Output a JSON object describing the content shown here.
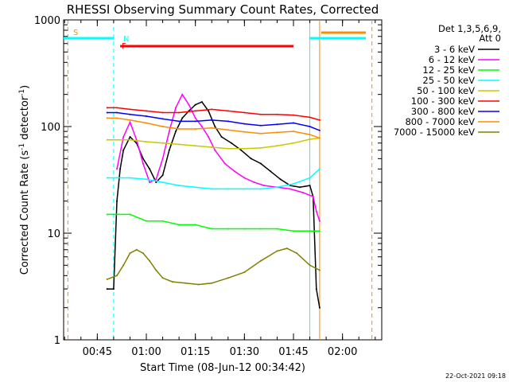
{
  "chart_data": {
    "type": "line",
    "title": "RHESSI Observing Summary Count Rates, Corrected",
    "xlabel": "Start Time (08-Jun-12 00:34:42)",
    "ylabel": "Corrected Count Rate (s⁻¹ detector⁻¹)",
    "ylabel_main": "Corrected Count Rate (s",
    "ylabel_sup1": "-1",
    "ylabel_mid": " detector",
    "ylabel_sup2": "-1",
    "ylabel_end": ")",
    "y_scale": "log",
    "ylim": [
      1,
      1000
    ],
    "xlim": [
      "00:34:42",
      "02:12:00"
    ],
    "x_ticks": [
      "00:45",
      "01:00",
      "01:15",
      "01:30",
      "01:45",
      "02:00"
    ],
    "y_ticks": [
      "1",
      "10",
      "100",
      "1000"
    ],
    "legend_title": "Det 1,3,5,6,9,",
    "legend_subtitle": "Att 0",
    "legend_position": "right",
    "footer_date": "22-Oct-2021 09:18",
    "annotations": {
      "saa": "S",
      "night": "N",
      "flare": "F"
    },
    "markers": {
      "night_end": "00:50",
      "night_start": "01:50",
      "saa_start": "00:36",
      "saa_end": "02:09",
      "attenuator_out_start": "01:53",
      "attenuator_out_end": "01:53",
      "flare_bar": [
        "00:52",
        "01:45"
      ]
    },
    "series": [
      {
        "name": "3 - 6 keV",
        "color": "#000000",
        "points": [
          [
            "00:48",
            3
          ],
          [
            "00:50",
            3
          ],
          [
            "00:51",
            20
          ],
          [
            "00:52",
            40
          ],
          [
            "00:53",
            60
          ],
          [
            "00:55",
            80
          ],
          [
            "00:57",
            70
          ],
          [
            "00:59",
            50
          ],
          [
            "01:01",
            40
          ],
          [
            "01:03",
            30
          ],
          [
            "01:05",
            35
          ],
          [
            "01:07",
            60
          ],
          [
            "01:09",
            90
          ],
          [
            "01:11",
            120
          ],
          [
            "01:13",
            140
          ],
          [
            "01:15",
            160
          ],
          [
            "01:17",
            170
          ],
          [
            "01:19",
            140
          ],
          [
            "01:21",
            100
          ],
          [
            "01:23",
            80
          ],
          [
            "01:26",
            70
          ],
          [
            "01:29",
            60
          ],
          [
            "01:32",
            50
          ],
          [
            "01:35",
            45
          ],
          [
            "01:38",
            38
          ],
          [
            "01:41",
            32
          ],
          [
            "01:44",
            28
          ],
          [
            "01:47",
            27
          ],
          [
            "01:50",
            28
          ],
          [
            "01:51",
            22
          ],
          [
            "01:52",
            3
          ],
          [
            "01:53",
            2
          ]
        ]
      },
      {
        "name": "6 - 12 keV",
        "color": "#ff00ff",
        "points": [
          [
            "00:51",
            40
          ],
          [
            "00:53",
            80
          ],
          [
            "00:55",
            110
          ],
          [
            "00:57",
            75
          ],
          [
            "00:59",
            45
          ],
          [
            "01:01",
            30
          ],
          [
            "01:03",
            32
          ],
          [
            "01:05",
            50
          ],
          [
            "01:07",
            90
          ],
          [
            "01:09",
            150
          ],
          [
            "01:11",
            200
          ],
          [
            "01:13",
            160
          ],
          [
            "01:15",
            120
          ],
          [
            "01:17",
            100
          ],
          [
            "01:19",
            80
          ],
          [
            "01:21",
            60
          ],
          [
            "01:24",
            45
          ],
          [
            "01:27",
            38
          ],
          [
            "01:30",
            33
          ],
          [
            "01:33",
            30
          ],
          [
            "01:36",
            28
          ],
          [
            "01:40",
            27
          ],
          [
            "01:44",
            26
          ],
          [
            "01:48",
            24
          ],
          [
            "01:51",
            22
          ],
          [
            "01:52",
            16
          ],
          [
            "01:53",
            13
          ]
        ]
      },
      {
        "name": "12 - 25 keV",
        "color": "#00ff00",
        "points": [
          [
            "00:48",
            15
          ],
          [
            "00:51",
            15
          ],
          [
            "00:55",
            15
          ],
          [
            "01:00",
            13
          ],
          [
            "01:05",
            13
          ],
          [
            "01:10",
            12
          ],
          [
            "01:15",
            12
          ],
          [
            "01:20",
            11
          ],
          [
            "01:25",
            11
          ],
          [
            "01:30",
            11
          ],
          [
            "01:35",
            11
          ],
          [
            "01:40",
            11
          ],
          [
            "01:45",
            10.5
          ],
          [
            "01:50",
            10.5
          ],
          [
            "01:53",
            10.5
          ]
        ]
      },
      {
        "name": "25 - 50 keV",
        "color": "#00ffff",
        "points": [
          [
            "00:48",
            33
          ],
          [
            "00:51",
            33
          ],
          [
            "00:55",
            33
          ],
          [
            "01:00",
            32
          ],
          [
            "01:05",
            30
          ],
          [
            "01:10",
            28
          ],
          [
            "01:15",
            27
          ],
          [
            "01:20",
            26
          ],
          [
            "01:25",
            26
          ],
          [
            "01:30",
            26
          ],
          [
            "01:35",
            26
          ],
          [
            "01:40",
            27
          ],
          [
            "01:45",
            29
          ],
          [
            "01:50",
            33
          ],
          [
            "01:53",
            40
          ]
        ]
      },
      {
        "name": "50 - 100 keV",
        "color": "#c8c800",
        "points": [
          [
            "00:48",
            75
          ],
          [
            "00:51",
            75
          ],
          [
            "00:55",
            75
          ],
          [
            "01:00",
            72
          ],
          [
            "01:05",
            70
          ],
          [
            "01:10",
            68
          ],
          [
            "01:15",
            66
          ],
          [
            "01:20",
            64
          ],
          [
            "01:25",
            62
          ],
          [
            "01:30",
            62
          ],
          [
            "01:35",
            63
          ],
          [
            "01:40",
            66
          ],
          [
            "01:45",
            70
          ],
          [
            "01:50",
            76
          ],
          [
            "01:53",
            78
          ]
        ]
      },
      {
        "name": "100 - 300 keV",
        "color": "#ff0000",
        "points": [
          [
            "00:48",
            150
          ],
          [
            "00:51",
            150
          ],
          [
            "00:55",
            145
          ],
          [
            "01:00",
            140
          ],
          [
            "01:05",
            135
          ],
          [
            "01:10",
            135
          ],
          [
            "01:15",
            140
          ],
          [
            "01:20",
            145
          ],
          [
            "01:25",
            140
          ],
          [
            "01:30",
            135
          ],
          [
            "01:35",
            130
          ],
          [
            "01:40",
            130
          ],
          [
            "01:45",
            128
          ],
          [
            "01:50",
            122
          ],
          [
            "01:53",
            115
          ]
        ]
      },
      {
        "name": "300 - 800 keV",
        "color": "#0000ff",
        "points": [
          [
            "00:48",
            135
          ],
          [
            "00:51",
            135
          ],
          [
            "00:55",
            130
          ],
          [
            "01:00",
            125
          ],
          [
            "01:05",
            118
          ],
          [
            "01:10",
            112
          ],
          [
            "01:15",
            112
          ],
          [
            "01:20",
            115
          ],
          [
            "01:25",
            112
          ],
          [
            "01:30",
            106
          ],
          [
            "01:35",
            102
          ],
          [
            "01:40",
            105
          ],
          [
            "01:45",
            108
          ],
          [
            "01:50",
            100
          ],
          [
            "01:53",
            92
          ]
        ]
      },
      {
        "name": "800 - 7000 keV",
        "color": "#ff8c00",
        "points": [
          [
            "00:48",
            120
          ],
          [
            "00:51",
            120
          ],
          [
            "00:55",
            115
          ],
          [
            "01:00",
            108
          ],
          [
            "01:05",
            100
          ],
          [
            "01:10",
            95
          ],
          [
            "01:15",
            95
          ],
          [
            "01:20",
            97
          ],
          [
            "01:25",
            93
          ],
          [
            "01:30",
            89
          ],
          [
            "01:35",
            86
          ],
          [
            "01:40",
            88
          ],
          [
            "01:45",
            90
          ],
          [
            "01:50",
            84
          ],
          [
            "01:53",
            78
          ]
        ]
      },
      {
        "name": "7000 - 15000 keV",
        "color": "#808000",
        "points": [
          [
            "00:48",
            3.7
          ],
          [
            "00:51",
            4
          ],
          [
            "00:53",
            5
          ],
          [
            "00:55",
            6.5
          ],
          [
            "00:57",
            7
          ],
          [
            "00:59",
            6.5
          ],
          [
            "01:01",
            5.5
          ],
          [
            "01:03",
            4.5
          ],
          [
            "01:05",
            3.8
          ],
          [
            "01:08",
            3.5
          ],
          [
            "01:12",
            3.4
          ],
          [
            "01:16",
            3.3
          ],
          [
            "01:20",
            3.4
          ],
          [
            "01:25",
            3.8
          ],
          [
            "01:30",
            4.3
          ],
          [
            "01:35",
            5.5
          ],
          [
            "01:40",
            6.8
          ],
          [
            "01:43",
            7.2
          ],
          [
            "01:46",
            6.5
          ],
          [
            "01:50",
            5
          ],
          [
            "01:53",
            4.5
          ]
        ]
      }
    ]
  }
}
